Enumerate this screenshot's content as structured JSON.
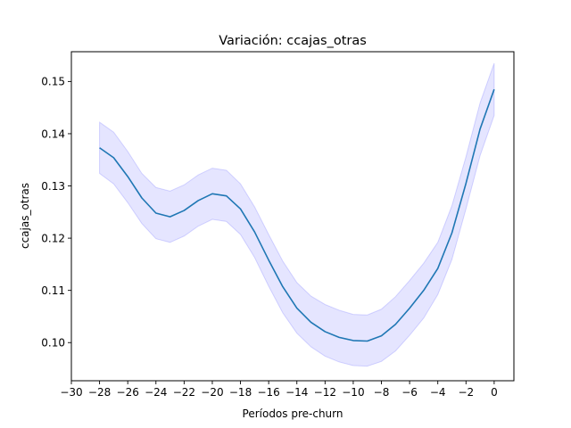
{
  "chart_data": {
    "type": "line",
    "title": "Variación: ccajas_otras",
    "xlabel": "Períodos pre-churn",
    "ylabel": "ccajas_otras",
    "xlim": [
      -30,
      1.4
    ],
    "ylim": [
      0.0927,
      0.1557
    ],
    "xticks": [
      -30,
      -28,
      -26,
      -24,
      -22,
      -20,
      -18,
      -16,
      -14,
      -12,
      -10,
      -8,
      -6,
      -4,
      -2,
      0
    ],
    "xtick_labels": [
      "−30",
      "−28",
      "−26",
      "−24",
      "−22",
      "−20",
      "−18",
      "−16",
      "−14",
      "−12",
      "−10",
      "−8",
      "−6",
      "−4",
      "−2",
      "0"
    ],
    "yticks": [
      0.1,
      0.11,
      0.12,
      0.13,
      0.14,
      0.15
    ],
    "ytick_labels": [
      "0.10",
      "0.11",
      "0.12",
      "0.13",
      "0.14",
      "0.15"
    ],
    "grid": false,
    "line_color": "#1f77b4",
    "band_color": "#0000ff",
    "x": [
      -28,
      -27,
      -26,
      -25,
      -24,
      -23,
      -22,
      -21,
      -20,
      -19,
      -18,
      -17,
      -16,
      -15,
      -14,
      -13,
      -12,
      -11,
      -10,
      -9,
      -8,
      -7,
      -6,
      -5,
      -4,
      -3,
      -2,
      -1,
      0
    ],
    "values": [
      0.1373,
      0.1354,
      0.1318,
      0.1277,
      0.1248,
      0.1241,
      0.1253,
      0.1272,
      0.1285,
      0.1281,
      0.1256,
      0.1212,
      0.1158,
      0.1107,
      0.1066,
      0.1039,
      0.1021,
      0.101,
      0.1004,
      0.1003,
      0.1013,
      0.1035,
      0.1066,
      0.11,
      0.1142,
      0.121,
      0.1305,
      0.1409,
      0.1485
    ],
    "upper": [
      0.1422,
      0.1403,
      0.1366,
      0.1324,
      0.1297,
      0.129,
      0.1302,
      0.1321,
      0.1334,
      0.133,
      0.1304,
      0.126,
      0.1207,
      0.1156,
      0.1115,
      0.1089,
      0.1073,
      0.1062,
      0.1054,
      0.1053,
      0.1064,
      0.1088,
      0.1119,
      0.1152,
      0.1192,
      0.1262,
      0.1356,
      0.1459,
      0.1535
    ],
    "lower": [
      0.1324,
      0.1304,
      0.1268,
      0.1228,
      0.1199,
      0.1192,
      0.1204,
      0.1223,
      0.1236,
      0.1232,
      0.1207,
      0.1163,
      0.1108,
      0.1057,
      0.1018,
      0.0992,
      0.0974,
      0.0963,
      0.0956,
      0.0955,
      0.0964,
      0.0984,
      0.1014,
      0.1047,
      0.1092,
      0.1159,
      0.1256,
      0.1358,
      0.1435
    ]
  }
}
